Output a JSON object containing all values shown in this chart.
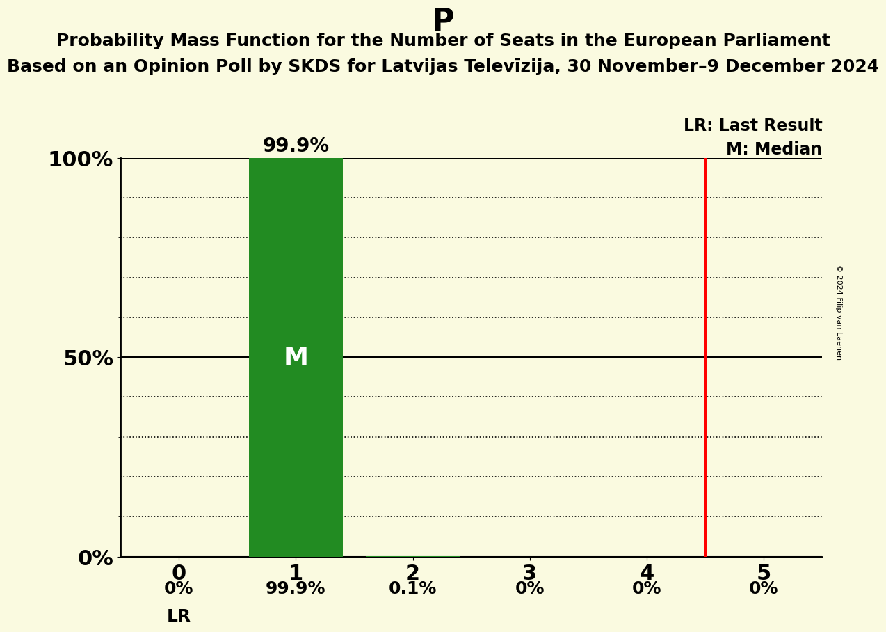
{
  "title_party": "P",
  "title_line1": "Probability Mass Function for the Number of Seats in the European Parliament",
  "title_line2": "Based on an Opinion Poll by SKDS for Latvijas Televīzija, 30 November–9 December 2024",
  "seats": [
    0,
    1,
    2,
    3,
    4,
    5
  ],
  "probabilities": [
    0.0,
    0.999,
    0.001,
    0.0,
    0.0,
    0.0
  ],
  "bar_labels": [
    "0%",
    "99.9%",
    "0.1%",
    "0%",
    "0%",
    "0%"
  ],
  "bar_color": "#228B22",
  "last_result": 4.5,
  "median": 1,
  "background_color": "#FAFAE0",
  "yticks": [
    0.0,
    0.5,
    1.0
  ],
  "ytick_labels": [
    "0%",
    "50%",
    "100%"
  ],
  "lr_label": "LR",
  "copyright": "© 2024 Filip van Laenen",
  "legend_lr": "LR: Last Result",
  "legend_m": "M: Median"
}
